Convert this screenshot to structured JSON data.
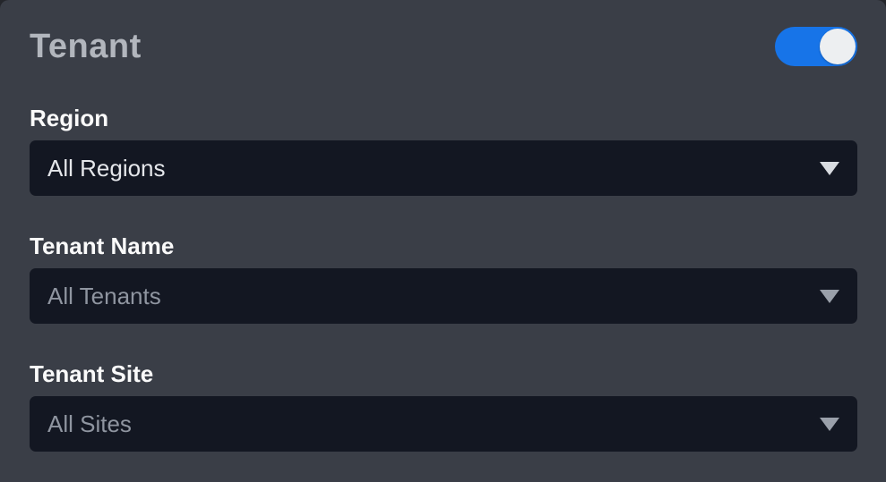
{
  "panel": {
    "title": "Tenant",
    "toggle": {
      "label": "tenant-filter-toggle",
      "state": "on"
    },
    "fields": [
      {
        "label": "Region",
        "value": "All Regions",
        "enabled": "true"
      },
      {
        "label": "Tenant Name",
        "value": "All Tenants",
        "enabled": "false"
      },
      {
        "label": "Tenant Site",
        "value": "All Sites",
        "enabled": "false"
      }
    ]
  },
  "colors": {
    "panel_background": "#3a3e47",
    "select_background": "#131722",
    "toggle_on": "#1774e8",
    "toggle_knob": "#edeff1",
    "title_text": "#b2b6bd",
    "label_text": "#fafafa",
    "select_active_text": "#e4e6ea",
    "select_muted_text": "#8f95a0"
  }
}
